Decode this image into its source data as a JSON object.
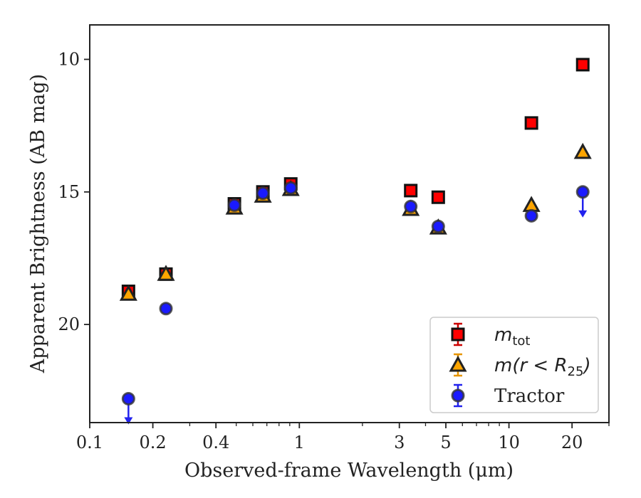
{
  "chart_data": {
    "type": "scatter",
    "xlabel": "Observed-frame Wavelength (μm)",
    "ylabel": "Apparent Brightness (AB mag)",
    "xscale": "log",
    "xlim": [
      0.1,
      30
    ],
    "ylim": [
      23.7,
      8.7
    ],
    "y_inverted": true,
    "grid": false,
    "legend_position": "bottom-right",
    "xticks": [
      {
        "value": 0.1,
        "label": "0.1"
      },
      {
        "value": 0.2,
        "label": "0.2"
      },
      {
        "value": 0.4,
        "label": "0.4"
      },
      {
        "value": 1,
        "label": "1"
      },
      {
        "value": 3,
        "label": "3"
      },
      {
        "value": 5,
        "label": "5"
      },
      {
        "value": 10,
        "label": "10"
      },
      {
        "value": 20,
        "label": "20"
      }
    ],
    "yticks": [
      {
        "value": 10,
        "label": "10"
      },
      {
        "value": 15,
        "label": "15"
      },
      {
        "value": 20,
        "label": "20"
      }
    ],
    "series": [
      {
        "name": "m_tot",
        "legend_base": "m",
        "legend_sub": "tot",
        "marker": "square",
        "color": "#ff0000",
        "errcolor": "#cc0000",
        "points": [
          {
            "x": 0.153,
            "y": 18.75
          },
          {
            "x": 0.231,
            "y": 18.1
          },
          {
            "x": 0.49,
            "y": 15.45
          },
          {
            "x": 0.67,
            "y": 15.0
          },
          {
            "x": 0.91,
            "y": 14.7
          },
          {
            "x": 3.4,
            "y": 14.95
          },
          {
            "x": 4.6,
            "y": 15.2
          },
          {
            "x": 12.8,
            "y": 12.4
          },
          {
            "x": 22.5,
            "y": 10.2
          }
        ]
      },
      {
        "name": "m(r < R25)",
        "legend_base": "m(r < R",
        "legend_sub": "25",
        "legend_tail": ")",
        "marker": "triangle",
        "color": "#ffa500",
        "errcolor": "#e69500",
        "points": [
          {
            "x": 0.153,
            "y": 18.85
          },
          {
            "x": 0.231,
            "y": 18.1
          },
          {
            "x": 0.49,
            "y": 15.6
          },
          {
            "x": 0.67,
            "y": 15.15
          },
          {
            "x": 0.91,
            "y": 14.9
          },
          {
            "x": 3.4,
            "y": 15.65
          },
          {
            "x": 4.6,
            "y": 16.35
          },
          {
            "x": 12.8,
            "y": 15.5
          },
          {
            "x": 22.5,
            "y": 13.5
          }
        ]
      },
      {
        "name": "Tractor",
        "marker": "circle",
        "color": "#1a1aff",
        "errcolor": "#2222ee",
        "points": [
          {
            "x": 0.153,
            "y": 22.8,
            "upper_limit": true
          },
          {
            "x": 0.231,
            "y": 19.4
          },
          {
            "x": 0.49,
            "y": 15.5
          },
          {
            "x": 0.67,
            "y": 15.05
          },
          {
            "x": 0.91,
            "y": 14.85
          },
          {
            "x": 3.4,
            "y": 15.55
          },
          {
            "x": 4.6,
            "y": 16.3
          },
          {
            "x": 12.8,
            "y": 15.9
          },
          {
            "x": 22.5,
            "y": 15.0,
            "upper_limit": true
          }
        ]
      }
    ]
  }
}
